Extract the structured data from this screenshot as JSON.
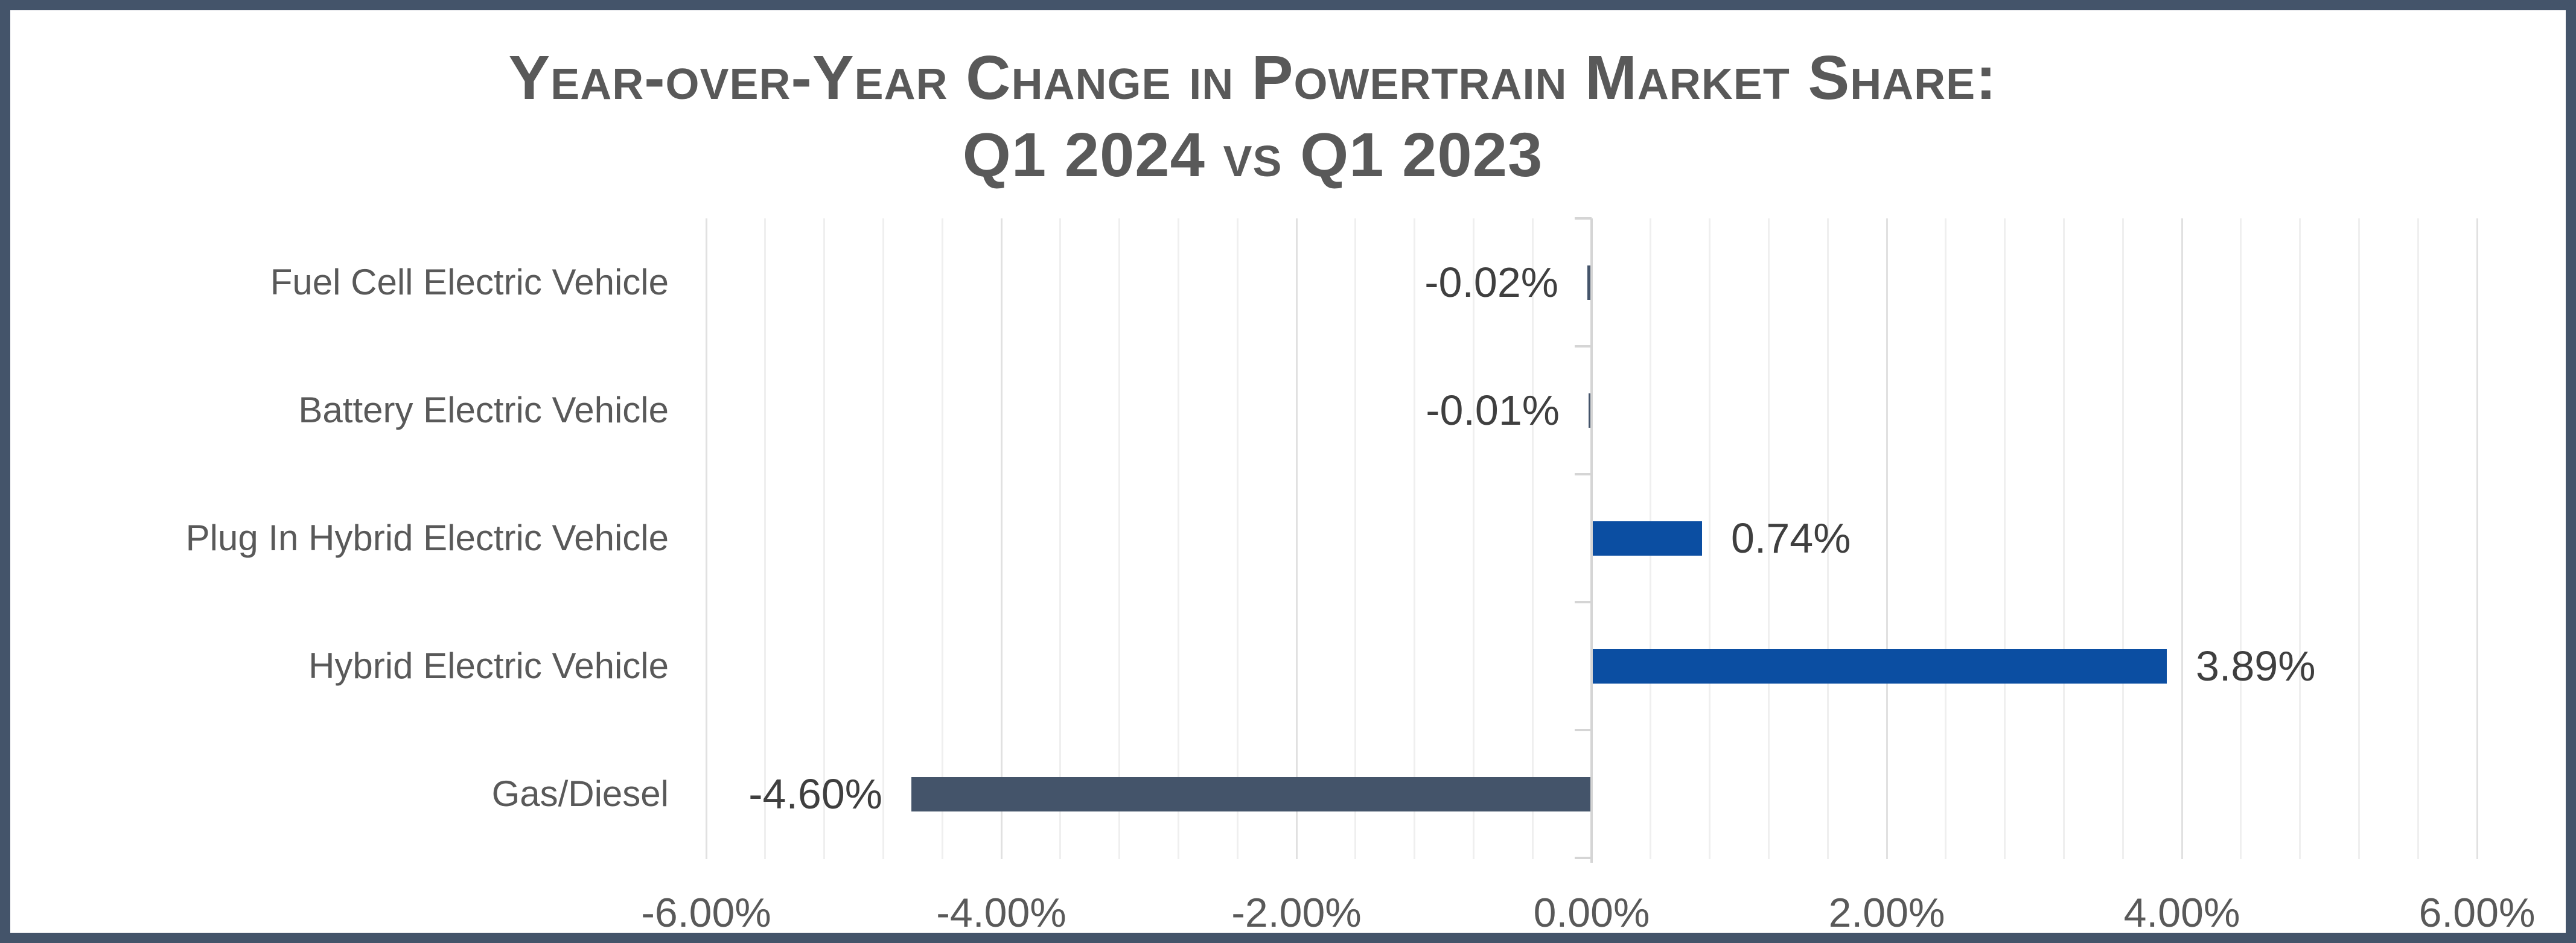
{
  "title": {
    "line1": "Year-over-Year Change in Powertrain Market Share:",
    "line2": "Q1 2024 vs Q1 2023"
  },
  "chart_data": {
    "type": "bar",
    "orientation": "horizontal",
    "title": "Year-over-Year Change in Powertrain Market Share: Q1 2024 vs Q1 2023",
    "categories": [
      "Fuel Cell Electric Vehicle",
      "Battery Electric Vehicle",
      "Plug In Hybrid Electric Vehicle",
      "Hybrid Electric Vehicle",
      "Gas/Diesel"
    ],
    "values": [
      -0.02,
      -0.01,
      0.74,
      3.89,
      -4.6
    ],
    "value_labels": [
      "-0.02%",
      "-0.01%",
      "0.74%",
      "3.89%",
      "-4.60%"
    ],
    "xlabel": "",
    "ylabel": "",
    "xlim": [
      -6,
      6
    ],
    "x_tick_values": [
      -6,
      -4,
      -2,
      0,
      2,
      4,
      6
    ],
    "x_tick_labels": [
      "-6.00%",
      "-4.00%",
      "-2.00%",
      "0.00%",
      "2.00%",
      "4.00%",
      "6.00%"
    ],
    "minor_grid_step": 0.4,
    "grid": true,
    "legend": false,
    "colors": {
      "positive_bar": "#0B4EA2",
      "negative_bar": "#44546A",
      "frame_border": "#44546A",
      "title_text": "#595959",
      "axis_text": "#595959",
      "data_label_text": "#3F3F3F"
    }
  }
}
